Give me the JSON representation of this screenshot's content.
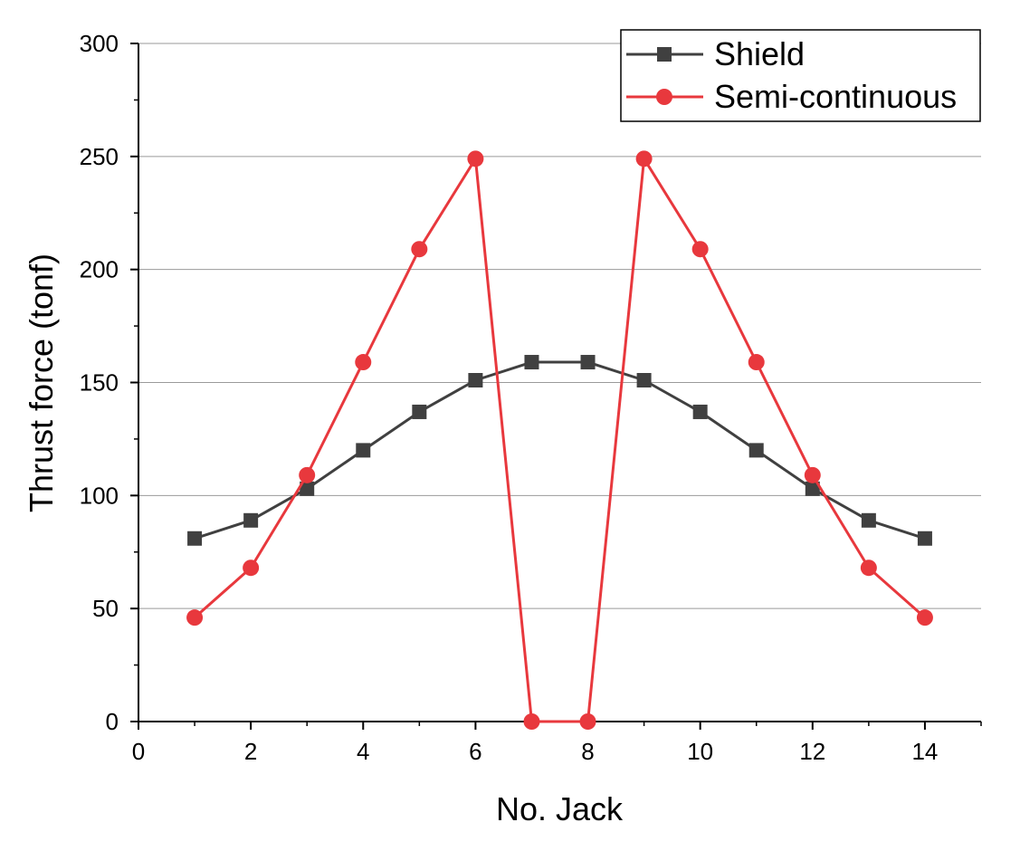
{
  "chart_data": {
    "type": "line",
    "title": "",
    "xlabel": "No. Jack",
    "ylabel": "Thrust force (tonf)",
    "xlim": [
      0,
      15
    ],
    "ylim": [
      0,
      300
    ],
    "xticks": [
      0,
      2,
      4,
      6,
      8,
      10,
      12,
      14
    ],
    "yticks": [
      0,
      50,
      100,
      150,
      200,
      250,
      300
    ],
    "grid": "horizontal",
    "legend_position": "top-right",
    "x": [
      1,
      2,
      3,
      4,
      5,
      6,
      7,
      8,
      9,
      10,
      11,
      12,
      13,
      14
    ],
    "series": [
      {
        "name": "Shield",
        "color": "#404040",
        "marker": "square",
        "values": [
          81,
          89,
          103,
          120,
          137,
          151,
          159,
          159,
          151,
          137,
          120,
          103,
          89,
          81
        ]
      },
      {
        "name": "Semi-continuous",
        "color": "#e8383d",
        "marker": "circle",
        "values": [
          46,
          68,
          109,
          159,
          209,
          249,
          0,
          0,
          249,
          209,
          159,
          109,
          68,
          46
        ]
      }
    ]
  }
}
